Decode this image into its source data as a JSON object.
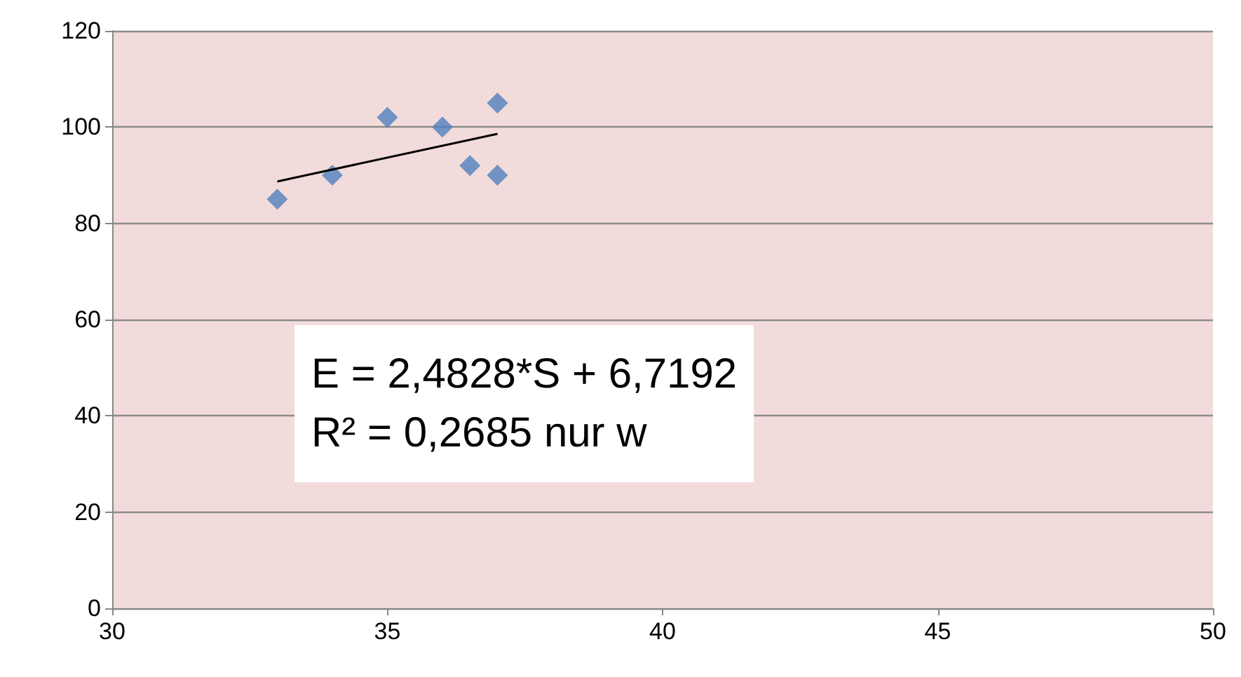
{
  "chart_data": {
    "type": "scatter",
    "marker": "diamond",
    "grid": "y",
    "xlim": [
      30,
      50
    ],
    "xticks": [
      30,
      35,
      40,
      45,
      50
    ],
    "ylim": [
      0,
      120
    ],
    "yticks": [
      0,
      20,
      40,
      60,
      80,
      100,
      120
    ],
    "series": [
      {
        "color": "#4f81bd",
        "x": [
          33,
          34,
          35,
          36,
          36.5,
          37,
          37
        ],
        "values": [
          85,
          90,
          102,
          100,
          92,
          105,
          90
        ]
      },
      {
        "type": "line",
        "marker": "none",
        "color": "#000000",
        "x": [
          33,
          37
        ],
        "values": [
          88.7,
          98.6
        ]
      }
    ],
    "annotations": [
      "E = 2,4828*S + 6,7192",
      "R² = 0,2685 nur w"
    ]
  }
}
